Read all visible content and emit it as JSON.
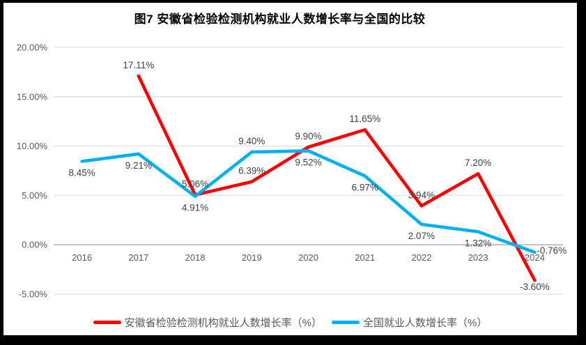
{
  "title": "图7 安徽省检验检测机构就业人数增长率与全国的比较",
  "colors": {
    "anhui_line": "#FF0000",
    "national_line": "#00B0F0",
    "gridline": "#D9D9D9",
    "zero_axis": "#A6A6A6",
    "tick_label": "#595959",
    "data_label": "#404040",
    "frame": "#000000",
    "background": "#FFFFFF"
  },
  "chart_data": {
    "type": "line",
    "title": "图7 安徽省检验检测机构就业人数增长率与全国的比较",
    "categories": [
      "2016",
      "2017",
      "2018",
      "2019",
      "2020",
      "2021",
      "2022",
      "2023",
      "2024"
    ],
    "series": [
      {
        "name": "安徽省检验检测机构就业人数增长率（%）",
        "color_key": "anhui_line",
        "values": [
          null,
          17.11,
          5.06,
          6.39,
          9.9,
          11.65,
          3.94,
          7.2,
          -3.6
        ],
        "label_placements": [
          null,
          "above",
          "above",
          "above",
          "above",
          "above",
          "above",
          "above",
          "below_near"
        ]
      },
      {
        "name": "全国就业人数增长率（%）",
        "color_key": "national_line",
        "values": [
          8.45,
          9.21,
          4.91,
          9.4,
          9.52,
          6.97,
          2.07,
          1.32,
          -0.76
        ],
        "label_placements": [
          "below",
          "below",
          "below",
          "above",
          "below",
          "below",
          "below",
          "below",
          "right"
        ]
      }
    ],
    "y_axis": {
      "min": -5,
      "max": 20,
      "step": 5,
      "tick_labels": [
        "20.00%",
        "15.00%",
        "10.00%",
        "5.00%",
        "0.00%",
        "-5.00%"
      ]
    },
    "label_format": "percent_2dp",
    "grid": true,
    "legend_position": "bottom"
  },
  "legend": {
    "items": [
      {
        "label": "安徽省检验检测机构就业人数增长率（%）",
        "color_key": "anhui_line"
      },
      {
        "label": "全国就业人数增长率（%）",
        "color_key": "national_line"
      }
    ]
  }
}
